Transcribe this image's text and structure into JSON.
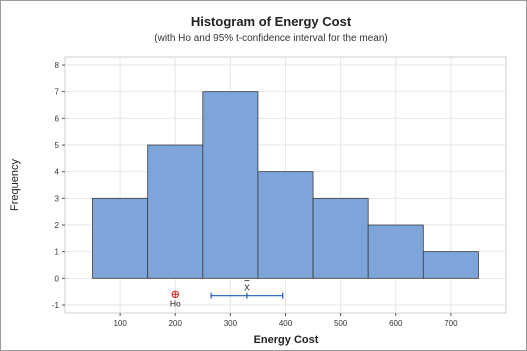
{
  "chart_data": {
    "type": "bar",
    "title": "Histogram of Energy Cost",
    "subtitle": "(with Ho and 95% t-confidence interval for the mean)",
    "xlabel": "Energy Cost",
    "ylabel": "Frequency",
    "bins": [
      {
        "from": 50,
        "to": 150,
        "count": 3
      },
      {
        "from": 150,
        "to": 250,
        "count": 5
      },
      {
        "from": 250,
        "to": 350,
        "count": 7
      },
      {
        "from": 350,
        "to": 450,
        "count": 4
      },
      {
        "from": 450,
        "to": 550,
        "count": 3
      },
      {
        "from": 550,
        "to": 650,
        "count": 2
      },
      {
        "from": 650,
        "to": 750,
        "count": 1
      }
    ],
    "xlim": [
      0,
      800
    ],
    "ylim": [
      -1.3,
      8.3
    ],
    "xticks": [
      100,
      200,
      300,
      400,
      500,
      600,
      700
    ],
    "yticks": [
      -1,
      0,
      1,
      2,
      3,
      4,
      5,
      6,
      7,
      8
    ],
    "grid": true,
    "ho": {
      "label": "Ho",
      "value": 200
    },
    "mean": {
      "label": "X",
      "value": 330
    },
    "ci95": [
      265,
      395
    ],
    "colors": {
      "bar_fill": "#7da5d9",
      "bar_stroke": "#3a3a3a",
      "ci_line": "#1f5bbd",
      "ho_marker": "#e02020",
      "grid": "#e6e6e6"
    }
  }
}
